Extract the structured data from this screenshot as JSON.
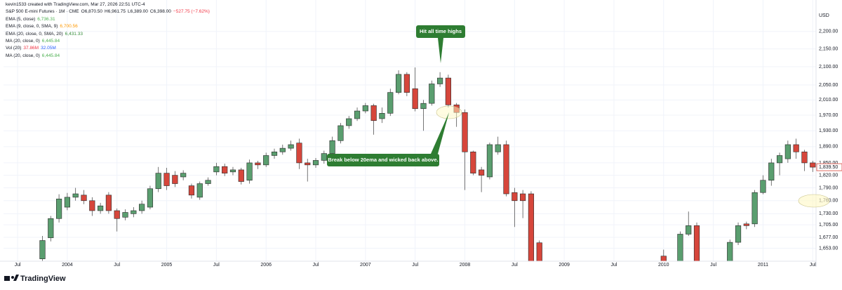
{
  "header": {
    "attribution": "kevin1533 created with TradingView.com, Mar 27, 2026 22:51 UTC-4",
    "brand": "TradingView"
  },
  "chart_data": {
    "type": "candlestick",
    "symbol": "S&P 500 E-mini Futures · 1M · CME",
    "ohlc_labels": [
      {
        "text": "O6,870.50",
        "color": "#131722"
      },
      {
        "text": "H6,961.75",
        "color": "#131722"
      },
      {
        "text": "L6,389.00",
        "color": "#131722"
      },
      {
        "text": "C6,398.00",
        "color": "#131722"
      },
      {
        "text": "−527.75 (−7.62%)",
        "color": "#f23645"
      }
    ],
    "indicators": [
      {
        "label": "EMA (5, close)",
        "values": [
          {
            "text": "6,736.31",
            "color": "#4caf50"
          }
        ]
      },
      {
        "label": "EMA (9, close, 0, SMA, 9)",
        "values": [
          {
            "text": "6,700.56",
            "color": "#ff9800"
          }
        ]
      },
      {
        "label": "EMA (20, close, 0, SMA, 20)",
        "values": [
          {
            "text": "6,431.33",
            "color": "#388e3c"
          }
        ]
      },
      {
        "label": "MA (20, close, 0)",
        "values": [
          {
            "text": "6,445.84",
            "color": "#4caf50"
          }
        ]
      },
      {
        "label": "Vol (20)",
        "values": [
          {
            "text": "37.86M",
            "color": "#f23645"
          },
          {
            "text": "32.05M",
            "color": "#2962ff"
          }
        ]
      },
      {
        "label": "MA (20, close, 0)",
        "values": [
          {
            "text": "6,445.84",
            "color": "#4caf50"
          }
        ]
      }
    ],
    "currency": "USD",
    "log_scale": true,
    "up_color": "#5a9e6f",
    "down_color": "#d6463b",
    "x": [
      -3,
      -2,
      -1,
      0,
      1,
      2,
      3,
      4,
      5,
      6,
      7,
      8,
      9,
      10,
      11,
      12,
      13,
      14,
      15,
      16,
      17,
      18,
      19,
      20,
      21,
      22,
      23,
      24,
      25,
      26,
      27,
      28,
      29,
      30,
      31,
      32,
      33,
      34,
      35,
      36,
      37,
      38,
      39,
      40,
      41,
      42,
      43,
      44,
      45,
      46,
      47,
      48,
      49,
      50,
      51,
      52,
      53,
      54,
      55,
      56,
      57,
      72,
      74,
      75,
      76,
      80,
      81,
      82,
      83,
      84,
      85,
      86,
      87,
      88,
      89,
      90
    ],
    "open": [
      1630,
      1676,
      1719,
      1745,
      1768,
      1773,
      1760,
      1737,
      1773,
      1737,
      1722,
      1730,
      1737,
      1745,
      1788,
      1825,
      1820,
      1816,
      1795,
      1768,
      1800,
      1828,
      1841,
      1828,
      1833,
      1808,
      1850,
      1845,
      1868,
      1877,
      1886,
      1899,
      1850,
      1845,
      1856,
      1873,
      1905,
      1943,
      1961,
      1981,
      1995,
      1961,
      1975,
      2030,
      2079,
      2040,
      1987,
      2001,
      2053,
      2069,
      1997,
      1977,
      1877,
      1833,
      1816,
      1877,
      1895,
      1779,
      1776,
      1776,
      1665,
      1636,
      1610,
      1684,
      1703,
      1615,
      1666,
      1707,
      1707,
      1779,
      1808,
      1850,
      1860,
      1895,
      1877,
      1850
    ],
    "high": [
      1680,
      1725,
      1775,
      1778,
      1790,
      1785,
      1768,
      1755,
      1780,
      1742,
      1740,
      1745,
      1760,
      1795,
      1840,
      1838,
      1830,
      1832,
      1800,
      1805,
      1815,
      1850,
      1848,
      1840,
      1838,
      1858,
      1855,
      1875,
      1885,
      1895,
      1905,
      1910,
      1860,
      1862,
      1880,
      1915,
      1950,
      1968,
      1990,
      2002,
      2000,
      1990,
      2040,
      2090,
      2085,
      2098,
      2010,
      2062,
      2085,
      2078,
      2002,
      1985,
      1880,
      1840,
      1900,
      1915,
      1905,
      1790,
      1785,
      1782,
      1670,
      1650,
      1690,
      1735,
      1710,
      1672,
      1710,
      1712,
      1785,
      1820,
      1860,
      1875,
      1905,
      1910,
      1882,
      1855
    ],
    "low": [
      1622,
      1668,
      1710,
      1738,
      1760,
      1752,
      1725,
      1730,
      1730,
      1690,
      1715,
      1722,
      1730,
      1740,
      1780,
      1785,
      1792,
      1808,
      1765,
      1762,
      1795,
      1820,
      1818,
      1820,
      1798,
      1800,
      1835,
      1840,
      1860,
      1870,
      1880,
      1835,
      1805,
      1838,
      1848,
      1865,
      1898,
      1935,
      1955,
      1975,
      1920,
      1950,
      1968,
      2025,
      2020,
      1980,
      1930,
      1995,
      2045,
      1990,
      1940,
      1785,
      1820,
      1780,
      1810,
      1870,
      1770,
      1700,
      1720,
      1590,
      1570,
      1600,
      1600,
      1680,
      1600,
      1605,
      1660,
      1695,
      1700,
      1775,
      1795,
      1820,
      1850,
      1860,
      1830,
      1828
    ],
    "close": [
      1670,
      1719,
      1764,
      1768,
      1776,
      1760,
      1737,
      1748,
      1737,
      1719,
      1733,
      1737,
      1752,
      1788,
      1825,
      1795,
      1800,
      1825,
      1773,
      1800,
      1808,
      1841,
      1825,
      1833,
      1805,
      1850,
      1845,
      1868,
      1877,
      1886,
      1895,
      1850,
      1845,
      1856,
      1873,
      1905,
      1943,
      1961,
      1981,
      1995,
      1956,
      1975,
      2030,
      2079,
      2030,
      1987,
      2001,
      2053,
      2069,
      1997,
      1977,
      1877,
      1825,
      1820,
      1895,
      1895,
      1776,
      1760,
      1760,
      1600,
      1582,
      1610,
      1684,
      1703,
      1610,
      1666,
      1703,
      1703,
      1779,
      1808,
      1850,
      1868,
      1895,
      1877,
      1850,
      1839.5
    ],
    "xlim": [
      -7.7,
      90.4
    ],
    "xticks": [
      {
        "value": -6,
        "label": "Jul"
      },
      {
        "value": 0,
        "label": "2004"
      },
      {
        "value": 6,
        "label": "Jul"
      },
      {
        "value": 12,
        "label": "2005"
      },
      {
        "value": 18,
        "label": "Jul"
      },
      {
        "value": 24,
        "label": "2006"
      },
      {
        "value": 30,
        "label": "Jul"
      },
      {
        "value": 36,
        "label": "2007"
      },
      {
        "value": 42,
        "label": "Jul"
      },
      {
        "value": 48,
        "label": "2008"
      },
      {
        "value": 54,
        "label": "Jul"
      },
      {
        "value": 60,
        "label": "2009"
      },
      {
        "value": 66,
        "label": "Jul"
      },
      {
        "value": 72,
        "label": "2010"
      },
      {
        "value": 78,
        "label": "Jul"
      },
      {
        "value": 84,
        "label": "2011"
      },
      {
        "value": 90,
        "label": "Jul"
      }
    ],
    "ylim": [
      1625,
      2272
    ],
    "yticks": [
      {
        "value": 2200,
        "label": "2,200.00"
      },
      {
        "value": 2150,
        "label": "2,150.00"
      },
      {
        "value": 2100,
        "label": "2,100.00"
      },
      {
        "value": 2050,
        "label": "2,050.00"
      },
      {
        "value": 2010,
        "label": "2,010.00"
      },
      {
        "value": 1970,
        "label": "1,970.00"
      },
      {
        "value": 1930,
        "label": "1,930.00"
      },
      {
        "value": 1890,
        "label": "1,890.00"
      },
      {
        "value": 1850,
        "label": "1,850.00"
      },
      {
        "value": 1820,
        "label": "1,820.00"
      },
      {
        "value": 1790,
        "label": "1,790.00"
      },
      {
        "value": 1760,
        "label": "1,760.00"
      },
      {
        "value": 1730,
        "label": "1,730.00"
      },
      {
        "value": 1705,
        "label": "1,705.00"
      },
      {
        "value": 1677,
        "label": "1,677.00"
      },
      {
        "value": 1653,
        "label": "1,653.00"
      }
    ],
    "grid": true,
    "last_price": {
      "value": 1839.5,
      "label": "1,839.50"
    },
    "annotations": [
      {
        "text": "Hit all time highs"
      },
      {
        "text": "Break below 20ema and wicked back above."
      }
    ]
  }
}
